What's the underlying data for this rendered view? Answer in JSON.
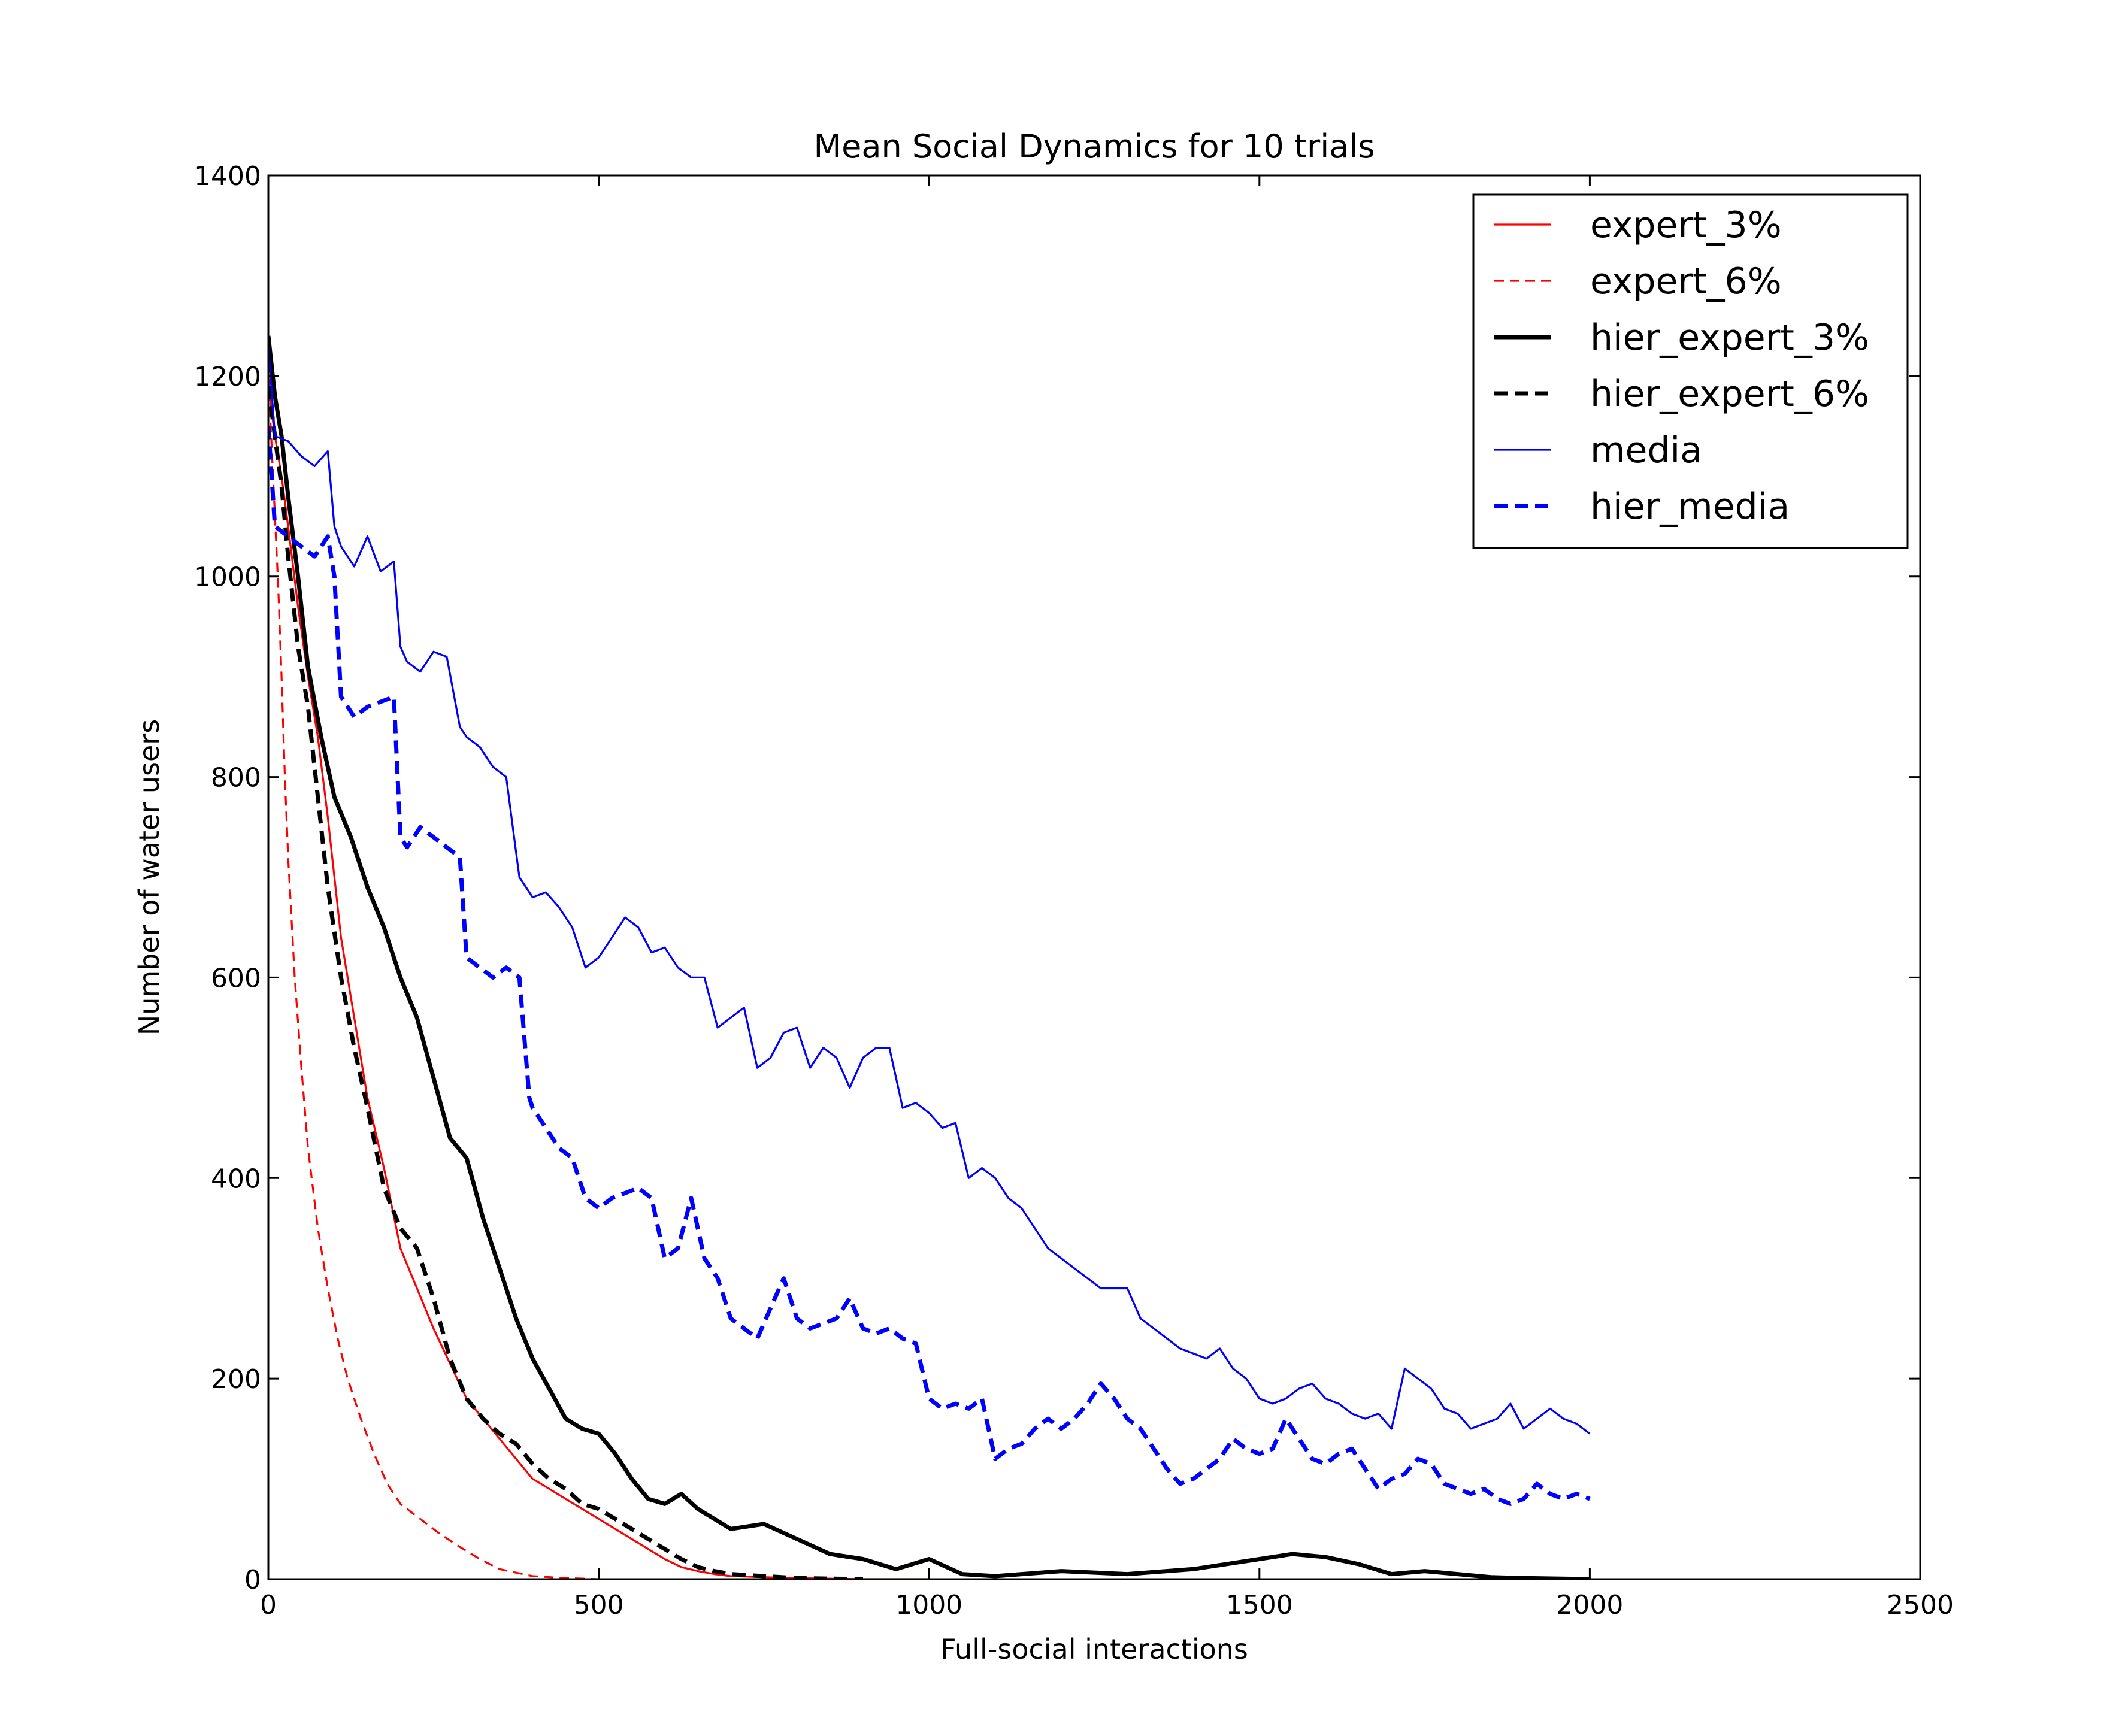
{
  "chart_data": {
    "type": "line",
    "title": "Mean Social Dynamics for 10 trials",
    "xlabel": "Full-social interactions",
    "ylabel": "Number of water users",
    "xlim": [
      0,
      2500
    ],
    "ylim": [
      0,
      1400
    ],
    "xticks": [
      0,
      500,
      1000,
      1500,
      2000,
      2500
    ],
    "yticks": [
      0,
      200,
      400,
      600,
      800,
      1000,
      1200,
      1400
    ],
    "grid": false,
    "legend_position": "top-right",
    "series": [
      {
        "name": "expert_3%",
        "color": "#ff0000",
        "style": "solid",
        "width": "thin",
        "x": [
          0,
          10,
          20,
          30,
          45,
          60,
          75,
          90,
          110,
          130,
          150,
          175,
          200,
          225,
          250,
          275,
          300,
          325,
          350,
          375,
          400,
          425,
          450,
          475,
          500,
          525,
          550,
          575,
          600,
          625,
          650,
          675,
          700,
          750,
          800,
          900,
          1000
        ],
        "y": [
          1190,
          1140,
          1100,
          1050,
          970,
          900,
          840,
          760,
          640,
          560,
          480,
          410,
          330,
          290,
          250,
          215,
          180,
          160,
          140,
          120,
          100,
          90,
          80,
          70,
          60,
          50,
          40,
          30,
          20,
          12,
          8,
          5,
          3,
          2,
          1,
          0,
          0
        ]
      },
      {
        "name": "expert_6%",
        "color": "#ff0000",
        "style": "dashed",
        "width": "thin",
        "x": [
          0,
          5,
          10,
          15,
          20,
          25,
          30,
          40,
          50,
          60,
          75,
          90,
          105,
          120,
          140,
          160,
          180,
          200,
          230,
          260,
          290,
          320,
          350,
          400,
          450,
          500
        ],
        "y": [
          1200,
          1130,
          1060,
          990,
          900,
          800,
          720,
          600,
          510,
          430,
          350,
          290,
          240,
          200,
          160,
          125,
          95,
          75,
          60,
          45,
          32,
          20,
          10,
          3,
          1,
          0
        ]
      },
      {
        "name": "hier_expert_3%",
        "color": "#000000",
        "style": "solid",
        "width": "thick",
        "x": [
          0,
          10,
          20,
          30,
          45,
          60,
          80,
          100,
          125,
          150,
          175,
          200,
          225,
          250,
          275,
          300,
          325,
          350,
          375,
          400,
          425,
          450,
          475,
          500,
          525,
          550,
          575,
          600,
          625,
          650,
          700,
          750,
          800,
          850,
          900,
          950,
          1000,
          1050,
          1100,
          1200,
          1300,
          1400,
          1450,
          1500,
          1550,
          1600,
          1650,
          1700,
          1750,
          1800,
          1850,
          1900,
          2000
        ],
        "y": [
          1240,
          1180,
          1140,
          1080,
          1000,
          910,
          840,
          780,
          740,
          690,
          650,
          600,
          560,
          500,
          440,
          420,
          360,
          310,
          260,
          220,
          190,
          160,
          150,
          145,
          125,
          100,
          80,
          75,
          85,
          70,
          50,
          55,
          40,
          25,
          20,
          10,
          20,
          5,
          3,
          8,
          5,
          10,
          15,
          20,
          25,
          22,
          15,
          5,
          8,
          5,
          2,
          1,
          0
        ]
      },
      {
        "name": "hier_expert_6%",
        "color": "#000000",
        "style": "dashed",
        "width": "thick",
        "x": [
          0,
          10,
          20,
          30,
          45,
          60,
          75,
          90,
          110,
          130,
          150,
          175,
          200,
          225,
          250,
          275,
          300,
          325,
          350,
          375,
          400,
          425,
          450,
          475,
          500,
          525,
          550,
          575,
          600,
          625,
          650,
          675,
          700,
          750,
          800,
          900
        ],
        "y": [
          1190,
          1140,
          1090,
          1020,
          930,
          870,
          780,
          690,
          600,
          530,
          470,
          390,
          350,
          330,
          280,
          220,
          180,
          160,
          145,
          135,
          115,
          100,
          90,
          75,
          70,
          60,
          50,
          40,
          30,
          20,
          12,
          8,
          5,
          3,
          1,
          0
        ]
      },
      {
        "name": "media",
        "color": "#0000ff",
        "style": "solid",
        "width": "thin",
        "x": [
          0,
          10,
          30,
          50,
          70,
          90,
          100,
          110,
          130,
          150,
          170,
          190,
          200,
          210,
          230,
          250,
          270,
          290,
          300,
          320,
          340,
          360,
          380,
          400,
          420,
          440,
          460,
          480,
          500,
          520,
          540,
          560,
          580,
          600,
          620,
          640,
          660,
          680,
          700,
          720,
          740,
          760,
          780,
          800,
          820,
          840,
          860,
          880,
          900,
          920,
          940,
          960,
          980,
          1000,
          1020,
          1040,
          1060,
          1080,
          1100,
          1120,
          1140,
          1160,
          1180,
          1200,
          1220,
          1240,
          1260,
          1280,
          1300,
          1320,
          1340,
          1360,
          1380,
          1400,
          1420,
          1440,
          1460,
          1480,
          1500,
          1520,
          1540,
          1560,
          1580,
          1600,
          1620,
          1640,
          1660,
          1680,
          1700,
          1720,
          1740,
          1760,
          1780,
          1800,
          1820,
          1840,
          1860,
          1880,
          1900,
          1920,
          1940,
          1960,
          1980,
          2000
        ],
        "y": [
          1230,
          1140,
          1135,
          1120,
          1110,
          1125,
          1050,
          1030,
          1010,
          1040,
          1005,
          1015,
          930,
          915,
          905,
          925,
          920,
          850,
          840,
          830,
          810,
          800,
          700,
          680,
          685,
          670,
          650,
          610,
          620,
          640,
          660,
          650,
          625,
          630,
          610,
          600,
          600,
          550,
          560,
          570,
          510,
          520,
          545,
          550,
          510,
          530,
          520,
          490,
          520,
          530,
          530,
          470,
          475,
          465,
          450,
          455,
          400,
          410,
          400,
          380,
          370,
          350,
          330,
          320,
          310,
          300,
          290,
          290,
          290,
          260,
          250,
          240,
          230,
          225,
          220,
          230,
          210,
          200,
          180,
          175,
          180,
          190,
          195,
          180,
          175,
          165,
          160,
          165,
          150,
          210,
          200,
          190,
          170,
          165,
          150,
          155,
          160,
          175,
          150,
          160,
          170,
          160,
          155,
          145
        ]
      },
      {
        "name": "hier_media",
        "color": "#0000ff",
        "style": "dashed",
        "width": "thick",
        "x": [
          0,
          10,
          30,
          50,
          70,
          90,
          100,
          110,
          130,
          150,
          170,
          190,
          200,
          210,
          230,
          250,
          270,
          290,
          300,
          320,
          340,
          360,
          380,
          395,
          400,
          420,
          440,
          460,
          480,
          500,
          520,
          540,
          560,
          580,
          600,
          620,
          640,
          660,
          680,
          700,
          720,
          740,
          760,
          780,
          800,
          820,
          840,
          860,
          880,
          900,
          920,
          940,
          960,
          980,
          1000,
          1020,
          1040,
          1060,
          1080,
          1100,
          1120,
          1140,
          1160,
          1180,
          1200,
          1220,
          1240,
          1260,
          1280,
          1300,
          1320,
          1340,
          1360,
          1380,
          1400,
          1420,
          1440,
          1460,
          1480,
          1500,
          1520,
          1540,
          1560,
          1580,
          1600,
          1620,
          1640,
          1660,
          1680,
          1700,
          1720,
          1740,
          1760,
          1780,
          1800,
          1820,
          1840,
          1860,
          1880,
          1900,
          1920,
          1940,
          1960,
          1980,
          2000
        ],
        "y": [
          1150,
          1050,
          1040,
          1030,
          1020,
          1040,
          1000,
          880,
          860,
          870,
          875,
          880,
          740,
          730,
          750,
          740,
          730,
          720,
          620,
          610,
          600,
          610,
          600,
          480,
          470,
          450,
          430,
          420,
          380,
          370,
          380,
          385,
          390,
          380,
          320,
          330,
          380,
          320,
          300,
          260,
          250,
          240,
          270,
          300,
          260,
          250,
          255,
          260,
          280,
          250,
          245,
          250,
          240,
          235,
          180,
          170,
          175,
          170,
          180,
          120,
          130,
          135,
          150,
          160,
          150,
          160,
          175,
          195,
          180,
          160,
          150,
          130,
          110,
          95,
          100,
          110,
          120,
          140,
          130,
          125,
          130,
          160,
          140,
          120,
          115,
          125,
          130,
          110,
          90,
          100,
          105,
          120,
          115,
          95,
          90,
          85,
          90,
          80,
          75,
          80,
          95,
          85,
          80,
          85,
          80
        ]
      }
    ]
  }
}
